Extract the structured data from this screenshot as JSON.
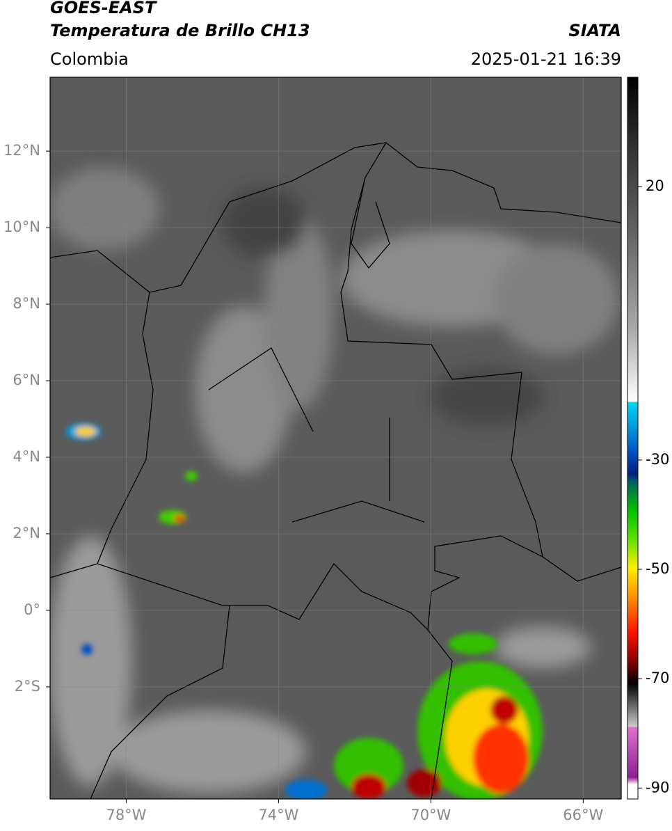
{
  "header": {
    "title": "GOES-EAST",
    "subtitle": "Temperatura de Brillo CH13",
    "source": "SIATA",
    "region": "Colombia",
    "timestamp": "2025-01-21 16:39"
  },
  "map": {
    "xlim": [
      -80,
      -65
    ],
    "ylim": [
      -4.93,
      13.93
    ],
    "xticks": [
      {
        "value": -78,
        "label": "78°W"
      },
      {
        "value": -74,
        "label": "74°W"
      },
      {
        "value": -70,
        "label": "70°W"
      },
      {
        "value": -66,
        "label": "66°W"
      }
    ],
    "yticks": [
      {
        "value": 12,
        "label": "12°N"
      },
      {
        "value": 10,
        "label": "10°N"
      },
      {
        "value": 8,
        "label": "8°N"
      },
      {
        "value": 6,
        "label": "6°N"
      },
      {
        "value": 4,
        "label": "4°N"
      },
      {
        "value": 2,
        "label": "2°N"
      },
      {
        "value": 0,
        "label": "0°"
      },
      {
        "value": -2,
        "label": "2°S"
      }
    ],
    "grid": true
  },
  "colorbar": {
    "range": [
      -92,
      40
    ],
    "ticks": [
      20,
      -30,
      -50,
      -70,
      -90
    ]
  }
}
